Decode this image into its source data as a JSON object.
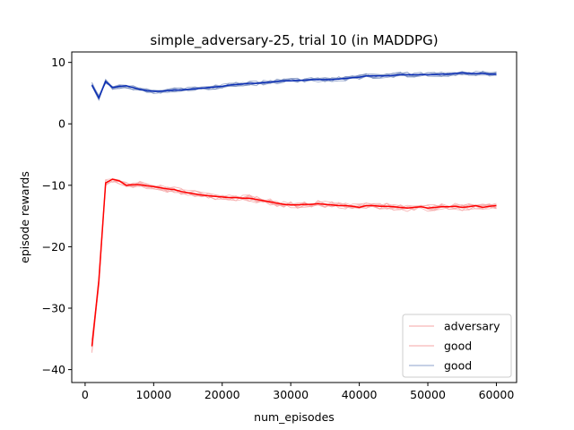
{
  "chart_data": {
    "type": "line",
    "title": "simple_adversary-25, trial 10 (in MADDPG)",
    "xlabel": "num_episodes",
    "ylabel": "episode rewards",
    "xlim": [
      -1950,
      62950
    ],
    "ylim": [
      -42.1,
      11.7
    ],
    "xticks": [
      0,
      10000,
      20000,
      30000,
      40000,
      50000,
      60000
    ],
    "xtick_labels": [
      "0",
      "10000",
      "20000",
      "30000",
      "40000",
      "50000",
      "60000"
    ],
    "yticks": [
      10,
      0,
      -10,
      -20,
      -30,
      -40
    ],
    "ytick_labels": [
      "10",
      "0",
      "−10",
      "−20",
      "−30",
      "−40"
    ],
    "grid": false,
    "legend_position": "lower-right",
    "legend": [
      {
        "label": "adversary",
        "color": "#f4a6a6"
      },
      {
        "label": "good",
        "color": "#f4a6a6"
      },
      {
        "label": "good",
        "color": "#8da0cb"
      }
    ],
    "x": [
      1000,
      2000,
      3000,
      4000,
      5000,
      6000,
      7000,
      8000,
      9000,
      10000,
      11000,
      12000,
      13000,
      14000,
      15000,
      16000,
      17000,
      18000,
      19000,
      20000,
      21000,
      22000,
      23000,
      24000,
      25000,
      26000,
      27000,
      28000,
      29000,
      30000,
      31000,
      32000,
      33000,
      34000,
      35000,
      36000,
      37000,
      38000,
      39000,
      40000,
      41000,
      42000,
      43000,
      44000,
      45000,
      46000,
      47000,
      48000,
      49000,
      50000,
      51000,
      52000,
      53000,
      54000,
      55000,
      56000,
      57000,
      58000,
      59000,
      60000
    ],
    "series": [
      {
        "group": "adversary",
        "color": "#ff0000",
        "values": [
          -36.2,
          -25.5,
          -9.6,
          -9.0,
          -9.3,
          -10.0,
          -9.9,
          -9.9,
          -10.1,
          -10.2,
          -10.4,
          -10.6,
          -10.7,
          -11.0,
          -11.2,
          -11.4,
          -11.6,
          -11.7,
          -11.8,
          -11.9,
          -12.0,
          -12.0,
          -12.1,
          -12.1,
          -12.3,
          -12.5,
          -12.7,
          -12.9,
          -13.1,
          -13.2,
          -13.2,
          -13.1,
          -13.1,
          -13.0,
          -13.1,
          -13.2,
          -13.3,
          -13.3,
          -13.4,
          -13.6,
          -13.3,
          -13.3,
          -13.4,
          -13.4,
          -13.5,
          -13.6,
          -13.7,
          -13.6,
          -13.5,
          -13.7,
          -13.6,
          -13.5,
          -13.5,
          -13.4,
          -13.6,
          -13.5,
          -13.3,
          -13.6,
          -13.4,
          -13.3
        ]
      },
      {
        "group": "good",
        "color": "#0a2db4",
        "values": [
          6.3,
          4.2,
          6.9,
          5.9,
          6.1,
          6.2,
          5.9,
          5.6,
          5.4,
          5.3,
          5.3,
          5.4,
          5.5,
          5.5,
          5.6,
          5.7,
          5.8,
          5.9,
          6.0,
          6.1,
          6.3,
          6.4,
          6.5,
          6.6,
          6.6,
          6.7,
          6.8,
          6.9,
          7.0,
          7.0,
          7.1,
          7.1,
          7.2,
          7.2,
          7.2,
          7.2,
          7.3,
          7.4,
          7.5,
          7.6,
          7.8,
          7.8,
          7.8,
          7.8,
          7.9,
          8.0,
          8.0,
          8.0,
          8.0,
          8.0,
          8.0,
          8.1,
          8.1,
          8.2,
          8.3,
          8.2,
          8.2,
          8.2,
          8.1,
          8.1
        ]
      }
    ]
  }
}
